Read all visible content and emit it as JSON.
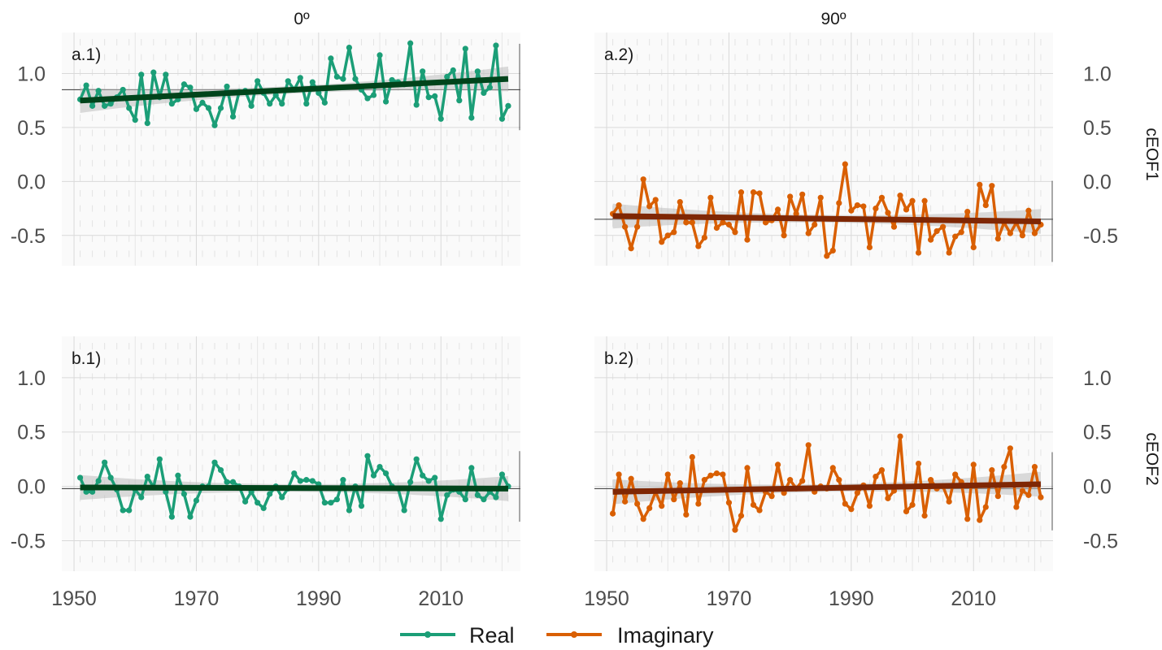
{
  "column_headers": [
    "0º",
    "90º"
  ],
  "row_headers": [
    "cEOF1",
    "cEOF2"
  ],
  "legend": [
    {
      "label": "Real",
      "color": "#1b9e77"
    },
    {
      "label": "Imaginary",
      "color": "#d95f02"
    }
  ],
  "colors": {
    "real": "#1b9e77",
    "real_trend": "#00441b",
    "imaginary": "#d95f02",
    "imaginary_trend": "#7f2704",
    "ribbon": "#bdbdbd",
    "panel_bg": "#fafafa",
    "grid": "#d9d9d9"
  },
  "chart_data": {
    "type": "line",
    "facets": "2 rows x 2 columns",
    "x_ticks": [
      "1950",
      "1970",
      "1990",
      "2010"
    ],
    "y_ticks": [
      "-0.5",
      "0.0",
      "0.5",
      "1.0"
    ],
    "xlim": [
      1948,
      2023
    ],
    "ylim": [
      -0.78,
      1.38
    ],
    "x": [
      1951,
      1952,
      1953,
      1954,
      1955,
      1956,
      1957,
      1958,
      1959,
      1960,
      1961,
      1962,
      1963,
      1964,
      1965,
      1966,
      1967,
      1968,
      1969,
      1970,
      1971,
      1972,
      1973,
      1974,
      1975,
      1976,
      1977,
      1978,
      1979,
      1980,
      1981,
      1982,
      1983,
      1984,
      1985,
      1986,
      1987,
      1988,
      1989,
      1990,
      1991,
      1992,
      1993,
      1994,
      1995,
      1996,
      1997,
      1998,
      1999,
      2000,
      2001,
      2002,
      2003,
      2004,
      2005,
      2006,
      2007,
      2008,
      2009,
      2010,
      2011,
      2012,
      2013,
      2014,
      2015,
      2016,
      2017,
      2018,
      2019,
      2020,
      2021
    ],
    "panels": [
      {
        "tag": "a.1)",
        "row": "cEOF1",
        "column": "0º",
        "series": "Real",
        "hline": 0.85,
        "trend": {
          "start": 0.75,
          "end": 0.95
        },
        "values": [
          0.76,
          0.89,
          0.7,
          0.84,
          0.7,
          0.72,
          0.78,
          0.85,
          0.68,
          0.57,
          0.99,
          0.54,
          1.01,
          0.78,
          0.99,
          0.72,
          0.76,
          0.9,
          0.87,
          0.67,
          0.73,
          0.68,
          0.52,
          0.68,
          0.88,
          0.6,
          0.83,
          0.84,
          0.7,
          0.93,
          0.82,
          0.72,
          0.8,
          0.72,
          0.93,
          0.85,
          0.96,
          0.72,
          0.92,
          0.82,
          0.73,
          1.14,
          0.97,
          0.95,
          1.24,
          0.95,
          0.85,
          0.77,
          0.8,
          1.17,
          0.74,
          0.94,
          0.92,
          0.9,
          1.28,
          0.71,
          1.02,
          0.78,
          0.79,
          0.58,
          0.97,
          1.03,
          0.75,
          1.23,
          0.59,
          1.02,
          0.82,
          0.87,
          1.26,
          0.58,
          0.7
        ]
      },
      {
        "tag": "a.2)",
        "row": "cEOF1",
        "column": "90º",
        "series": "Imaginary",
        "hline": -0.35,
        "trend": {
          "start": -0.32,
          "end": -0.37
        },
        "values": [
          -0.3,
          -0.22,
          -0.42,
          -0.62,
          -0.42,
          0.02,
          -0.23,
          -0.17,
          -0.56,
          -0.5,
          -0.47,
          -0.19,
          -0.38,
          -0.38,
          -0.6,
          -0.52,
          -0.15,
          -0.43,
          -0.38,
          -0.4,
          -0.47,
          -0.1,
          -0.54,
          -0.1,
          -0.11,
          -0.38,
          -0.36,
          -0.26,
          -0.5,
          -0.14,
          -0.3,
          -0.12,
          -0.48,
          -0.4,
          -0.15,
          -0.69,
          -0.64,
          -0.2,
          0.16,
          -0.27,
          -0.22,
          -0.23,
          -0.61,
          -0.25,
          -0.15,
          -0.29,
          -0.42,
          -0.13,
          -0.26,
          -0.18,
          -0.66,
          -0.18,
          -0.54,
          -0.46,
          -0.42,
          -0.66,
          -0.51,
          -0.47,
          -0.28,
          -0.61,
          -0.03,
          -0.22,
          -0.04,
          -0.53,
          -0.38,
          -0.48,
          -0.38,
          -0.5,
          -0.27,
          -0.48,
          -0.4
        ]
      },
      {
        "tag": "b.1)",
        "row": "cEOF2",
        "column": "0º",
        "series": "Real",
        "hline": -0.02,
        "trend": {
          "start": -0.01,
          "end": -0.02
        },
        "values": [
          0.08,
          -0.05,
          -0.05,
          0.05,
          0.22,
          0.08,
          -0.03,
          -0.22,
          -0.22,
          -0.03,
          -0.1,
          0.09,
          -0.01,
          0.25,
          -0.05,
          -0.28,
          0.1,
          -0.07,
          -0.28,
          -0.13,
          0.0,
          0.0,
          0.22,
          0.15,
          0.04,
          0.04,
          0.0,
          -0.14,
          -0.05,
          -0.15,
          -0.2,
          -0.07,
          0.0,
          -0.1,
          -0.02,
          0.12,
          0.05,
          0.06,
          0.05,
          0.02,
          -0.15,
          -0.15,
          -0.12,
          0.06,
          -0.22,
          0.0,
          -0.18,
          0.28,
          0.1,
          0.18,
          0.12,
          0.0,
          -0.02,
          -0.22,
          0.04,
          0.25,
          0.1,
          0.05,
          0.08,
          -0.3,
          -0.08,
          -0.03,
          -0.05,
          -0.12,
          0.17,
          -0.08,
          -0.12,
          -0.05,
          -0.1,
          0.11,
          0.0
        ]
      },
      {
        "tag": "b.2)",
        "row": "cEOF2",
        "column": "90º",
        "series": "Imaginary",
        "hline": -0.02,
        "trend": {
          "start": -0.05,
          "end": 0.02
        },
        "values": [
          -0.25,
          0.11,
          -0.14,
          0.07,
          -0.16,
          -0.3,
          -0.2,
          -0.05,
          -0.18,
          0.11,
          -0.12,
          0.03,
          -0.26,
          0.27,
          -0.16,
          0.06,
          0.1,
          0.12,
          0.11,
          -0.15,
          -0.4,
          -0.27,
          0.17,
          -0.17,
          -0.22,
          -0.05,
          -0.09,
          0.2,
          -0.06,
          0.06,
          -0.02,
          0.05,
          0.38,
          -0.05,
          0.0,
          -0.02,
          0.17,
          0.06,
          -0.16,
          -0.21,
          -0.06,
          0.01,
          -0.18,
          0.09,
          0.15,
          -0.11,
          -0.04,
          0.46,
          -0.23,
          -0.17,
          0.21,
          -0.27,
          0.06,
          -0.02,
          0.0,
          -0.14,
          0.11,
          0.04,
          -0.3,
          0.2,
          -0.31,
          -0.19,
          0.15,
          -0.09,
          0.18,
          0.35,
          -0.19,
          -0.04,
          -0.08,
          0.18,
          -0.1
        ]
      }
    ]
  }
}
